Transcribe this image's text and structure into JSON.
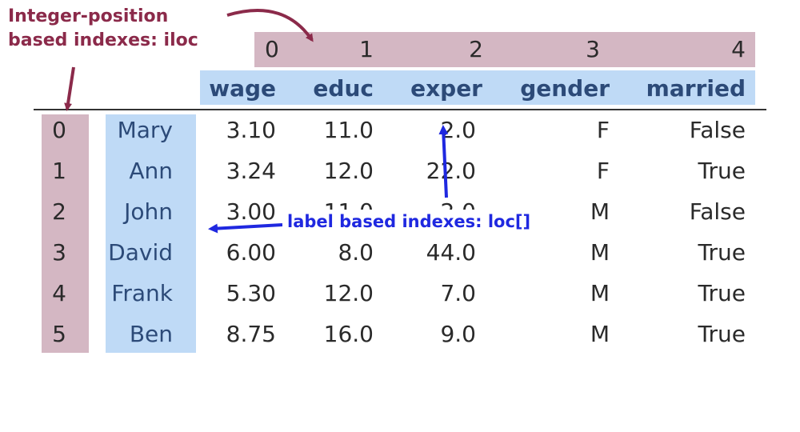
{
  "iloc_annotation": [
    "Integer-position",
    "based indexes: iloc"
  ],
  "loc_annotation": "label based  indexes: loc[]",
  "columns": [
    "wage",
    "educ",
    "exper",
    "gender",
    "married"
  ],
  "column_positions": [
    "0",
    "1",
    "2",
    "3",
    "4"
  ],
  "rows": [
    {
      "pos": "0",
      "label": "Mary",
      "values": [
        "3.10",
        "11.0",
        "2.0",
        "F",
        "False"
      ]
    },
    {
      "pos": "1",
      "label": "Ann",
      "values": [
        "3.24",
        "12.0",
        "22.0",
        "F",
        "True"
      ]
    },
    {
      "pos": "2",
      "label": "John",
      "values": [
        "3.00",
        "11.0",
        "2.0",
        "M",
        "False"
      ]
    },
    {
      "pos": "3",
      "label": "David",
      "values": [
        "6.00",
        "8.0",
        "44.0",
        "M",
        "True"
      ]
    },
    {
      "pos": "4",
      "label": "Frank",
      "values": [
        "5.30",
        "12.0",
        "7.0",
        "M",
        "True"
      ]
    },
    {
      "pos": "5",
      "label": "Ben",
      "values": [
        "8.75",
        "16.0",
        "9.0",
        "M",
        "True"
      ]
    }
  ],
  "colors": {
    "iloc_band": "#d4b7c3",
    "label_band": "#bfdaf6",
    "iloc_text": "#8b2a4a",
    "loc_text": "#1f28e0",
    "header_text": "#2c4a78"
  }
}
